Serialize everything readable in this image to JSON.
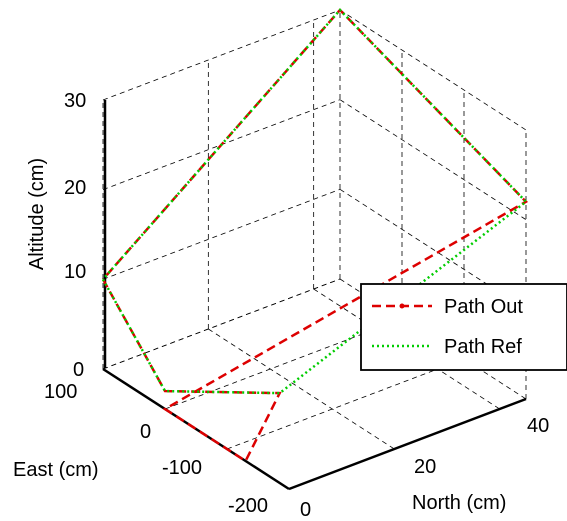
{
  "chart_data": {
    "type": "line",
    "view": "3d",
    "xlabel": "North (cm)",
    "ylabel": "East (cm)",
    "zlabel": "Altitude (cm)",
    "xlim": [
      0,
      45
    ],
    "ylim": [
      -200,
      100
    ],
    "zlim": [
      0,
      30
    ],
    "xticks": [
      "0",
      "20",
      "40"
    ],
    "yticks": [
      "-200",
      "-100",
      "0",
      "100"
    ],
    "zticks": [
      "0",
      "10",
      "20",
      "30"
    ],
    "grid": true,
    "legend_position": "right",
    "series": [
      {
        "name": "Path Out",
        "color": "#dd0000",
        "style": "dashed",
        "marker": "dot",
        "points": [
          [
            0,
            100,
            10
          ],
          [
            0,
            0,
            2
          ],
          [
            10,
            -100,
            4
          ],
          [
            0,
            -130,
            0
          ],
          [
            0,
            0,
            0
          ],
          [
            45,
            -200,
            22
          ],
          [
            45,
            100,
            30
          ],
          [
            0,
            100,
            10
          ]
        ]
      },
      {
        "name": "Path Ref",
        "color": "#00cc00",
        "style": "dotted",
        "marker": "none",
        "points": [
          [
            0,
            100,
            10
          ],
          [
            0,
            0,
            2
          ],
          [
            10,
            -100,
            4
          ],
          [
            45,
            -200,
            22
          ],
          [
            45,
            100,
            30
          ],
          [
            0,
            100,
            10
          ]
        ]
      }
    ]
  }
}
